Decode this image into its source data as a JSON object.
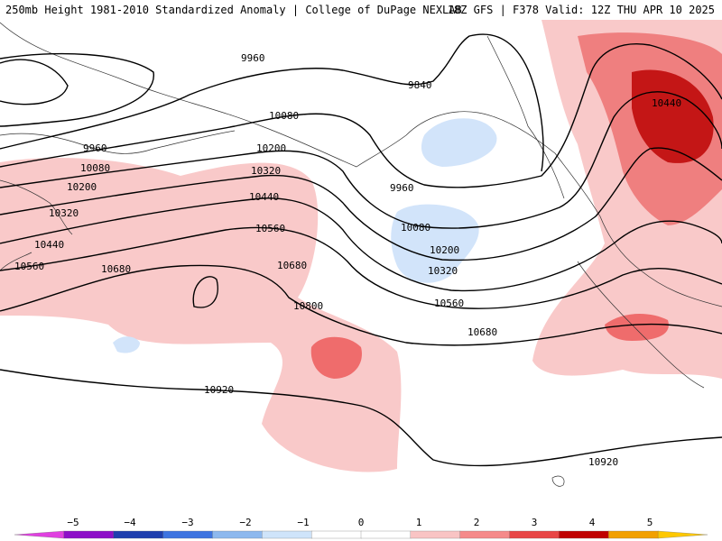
{
  "header": {
    "left": "250mb Height 1981-2010 Standardized Anomaly | College of DuPage NEXLAB",
    "right": "18Z GFS | F378 Valid: 12Z THU APR 10 2025"
  },
  "contour_labels": [
    "9960",
    "9840",
    "10080",
    "10200",
    "10320",
    "10440",
    "10560",
    "10680",
    "10800",
    "10920"
  ],
  "colorbar": {
    "ticks": [
      "−5",
      "−4",
      "−3",
      "−2",
      "−1",
      "0",
      "1",
      "2",
      "3",
      "4",
      "5"
    ],
    "colors": [
      "#e040e0",
      "#8e10c8",
      "#1f3fae",
      "#3e74e0",
      "#8db8ee",
      "#cfe4fa",
      "#ffffff",
      "#ffffff",
      "#f9c4c4",
      "#f58a8a",
      "#e84646",
      "#c00000",
      "#f2a000",
      "#ffc800"
    ]
  }
}
